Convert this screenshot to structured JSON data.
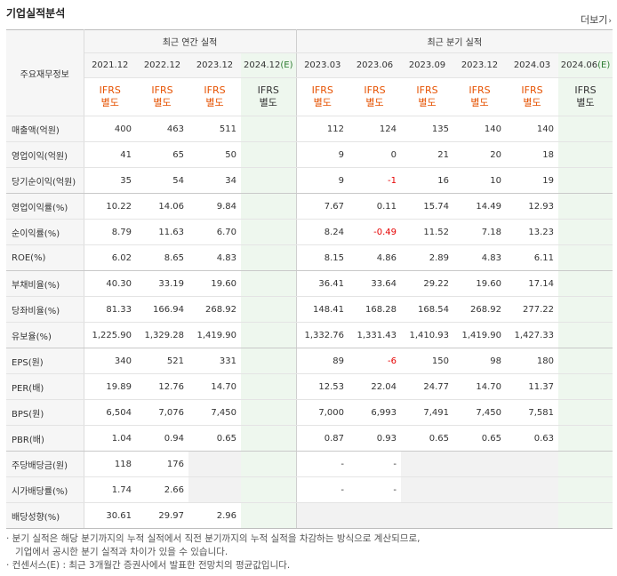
{
  "title": "기업실적분석",
  "more": "더보기",
  "corner_label": "주요재무정보",
  "group_annual": "최근 연간 실적",
  "group_quarter": "최근 분기 실적",
  "periods": [
    "2021.12",
    "2022.12",
    "2023.12",
    "2024.12",
    "2023.03",
    "2023.06",
    "2023.09",
    "2023.12",
    "2024.03",
    "2024.06"
  ],
  "estimate_mark": "(E)",
  "ifrs_top": "IFRS",
  "ifrs_bottom": "별도",
  "rows": [
    {
      "label": "매출액(억원)",
      "values": [
        "400",
        "463",
        "511",
        "",
        "112",
        "124",
        "135",
        "140",
        "140",
        ""
      ]
    },
    {
      "label": "영업이익(억원)",
      "values": [
        "41",
        "65",
        "50",
        "",
        "9",
        "0",
        "21",
        "20",
        "18",
        ""
      ]
    },
    {
      "label": "당기순이익(억원)",
      "values": [
        "35",
        "54",
        "34",
        "",
        "9",
        "-1",
        "16",
        "10",
        "19",
        ""
      ]
    },
    {
      "label": "영업이익률(%)",
      "values": [
        "10.22",
        "14.06",
        "9.84",
        "",
        "7.67",
        "0.11",
        "15.74",
        "14.49",
        "12.93",
        ""
      ]
    },
    {
      "label": "순이익률(%)",
      "values": [
        "8.79",
        "11.63",
        "6.70",
        "",
        "8.24",
        "-0.49",
        "11.52",
        "7.18",
        "13.23",
        ""
      ]
    },
    {
      "label": "ROE(%)",
      "values": [
        "6.02",
        "8.65",
        "4.83",
        "",
        "8.15",
        "4.86",
        "2.89",
        "4.83",
        "6.11",
        ""
      ]
    },
    {
      "label": "부채비율(%)",
      "values": [
        "40.30",
        "33.19",
        "19.60",
        "",
        "36.41",
        "33.64",
        "29.22",
        "19.60",
        "17.14",
        ""
      ]
    },
    {
      "label": "당좌비율(%)",
      "values": [
        "81.33",
        "166.94",
        "268.92",
        "",
        "148.41",
        "168.28",
        "168.54",
        "268.92",
        "277.22",
        ""
      ]
    },
    {
      "label": "유보율(%)",
      "values": [
        "1,225.90",
        "1,329.28",
        "1,419.90",
        "",
        "1,332.76",
        "1,331.43",
        "1,410.93",
        "1,419.90",
        "1,427.33",
        ""
      ]
    },
    {
      "label": "EPS(원)",
      "values": [
        "340",
        "521",
        "331",
        "",
        "89",
        "-6",
        "150",
        "98",
        "180",
        ""
      ]
    },
    {
      "label": "PER(배)",
      "values": [
        "19.89",
        "12.76",
        "14.70",
        "",
        "12.53",
        "22.04",
        "24.77",
        "14.70",
        "11.37",
        ""
      ]
    },
    {
      "label": "BPS(원)",
      "values": [
        "6,504",
        "7,076",
        "7,450",
        "",
        "7,000",
        "6,993",
        "7,491",
        "7,450",
        "7,581",
        ""
      ]
    },
    {
      "label": "PBR(배)",
      "values": [
        "1.04",
        "0.94",
        "0.65",
        "",
        "0.87",
        "0.93",
        "0.65",
        "0.65",
        "0.63",
        ""
      ]
    },
    {
      "label": "주당배당금(원)",
      "values": [
        "118",
        "176",
        "",
        "",
        "-",
        "-",
        "",
        "",
        "",
        ""
      ]
    },
    {
      "label": "시가배당률(%)",
      "values": [
        "1.74",
        "2.66",
        "",
        "",
        "-",
        "-",
        "",
        "",
        "",
        ""
      ]
    },
    {
      "label": "배당성향(%)",
      "values": [
        "30.61",
        "29.97",
        "2.96",
        "",
        "",
        "",
        "",
        "",
        "",
        ""
      ]
    }
  ],
  "notes": [
    "· 분기 실적은 해당 분기까지의 누적 실적에서 직전 분기까지의 누적 실적을 차감하는 방식으로 계산되므로,",
    "기업에서 공시한 분기 실적과 차이가 있을 수 있습니다.",
    "· 컨센서스(E) : 최근 3개월간 증권사에서 발표한 전망치의 평균값입니다."
  ]
}
